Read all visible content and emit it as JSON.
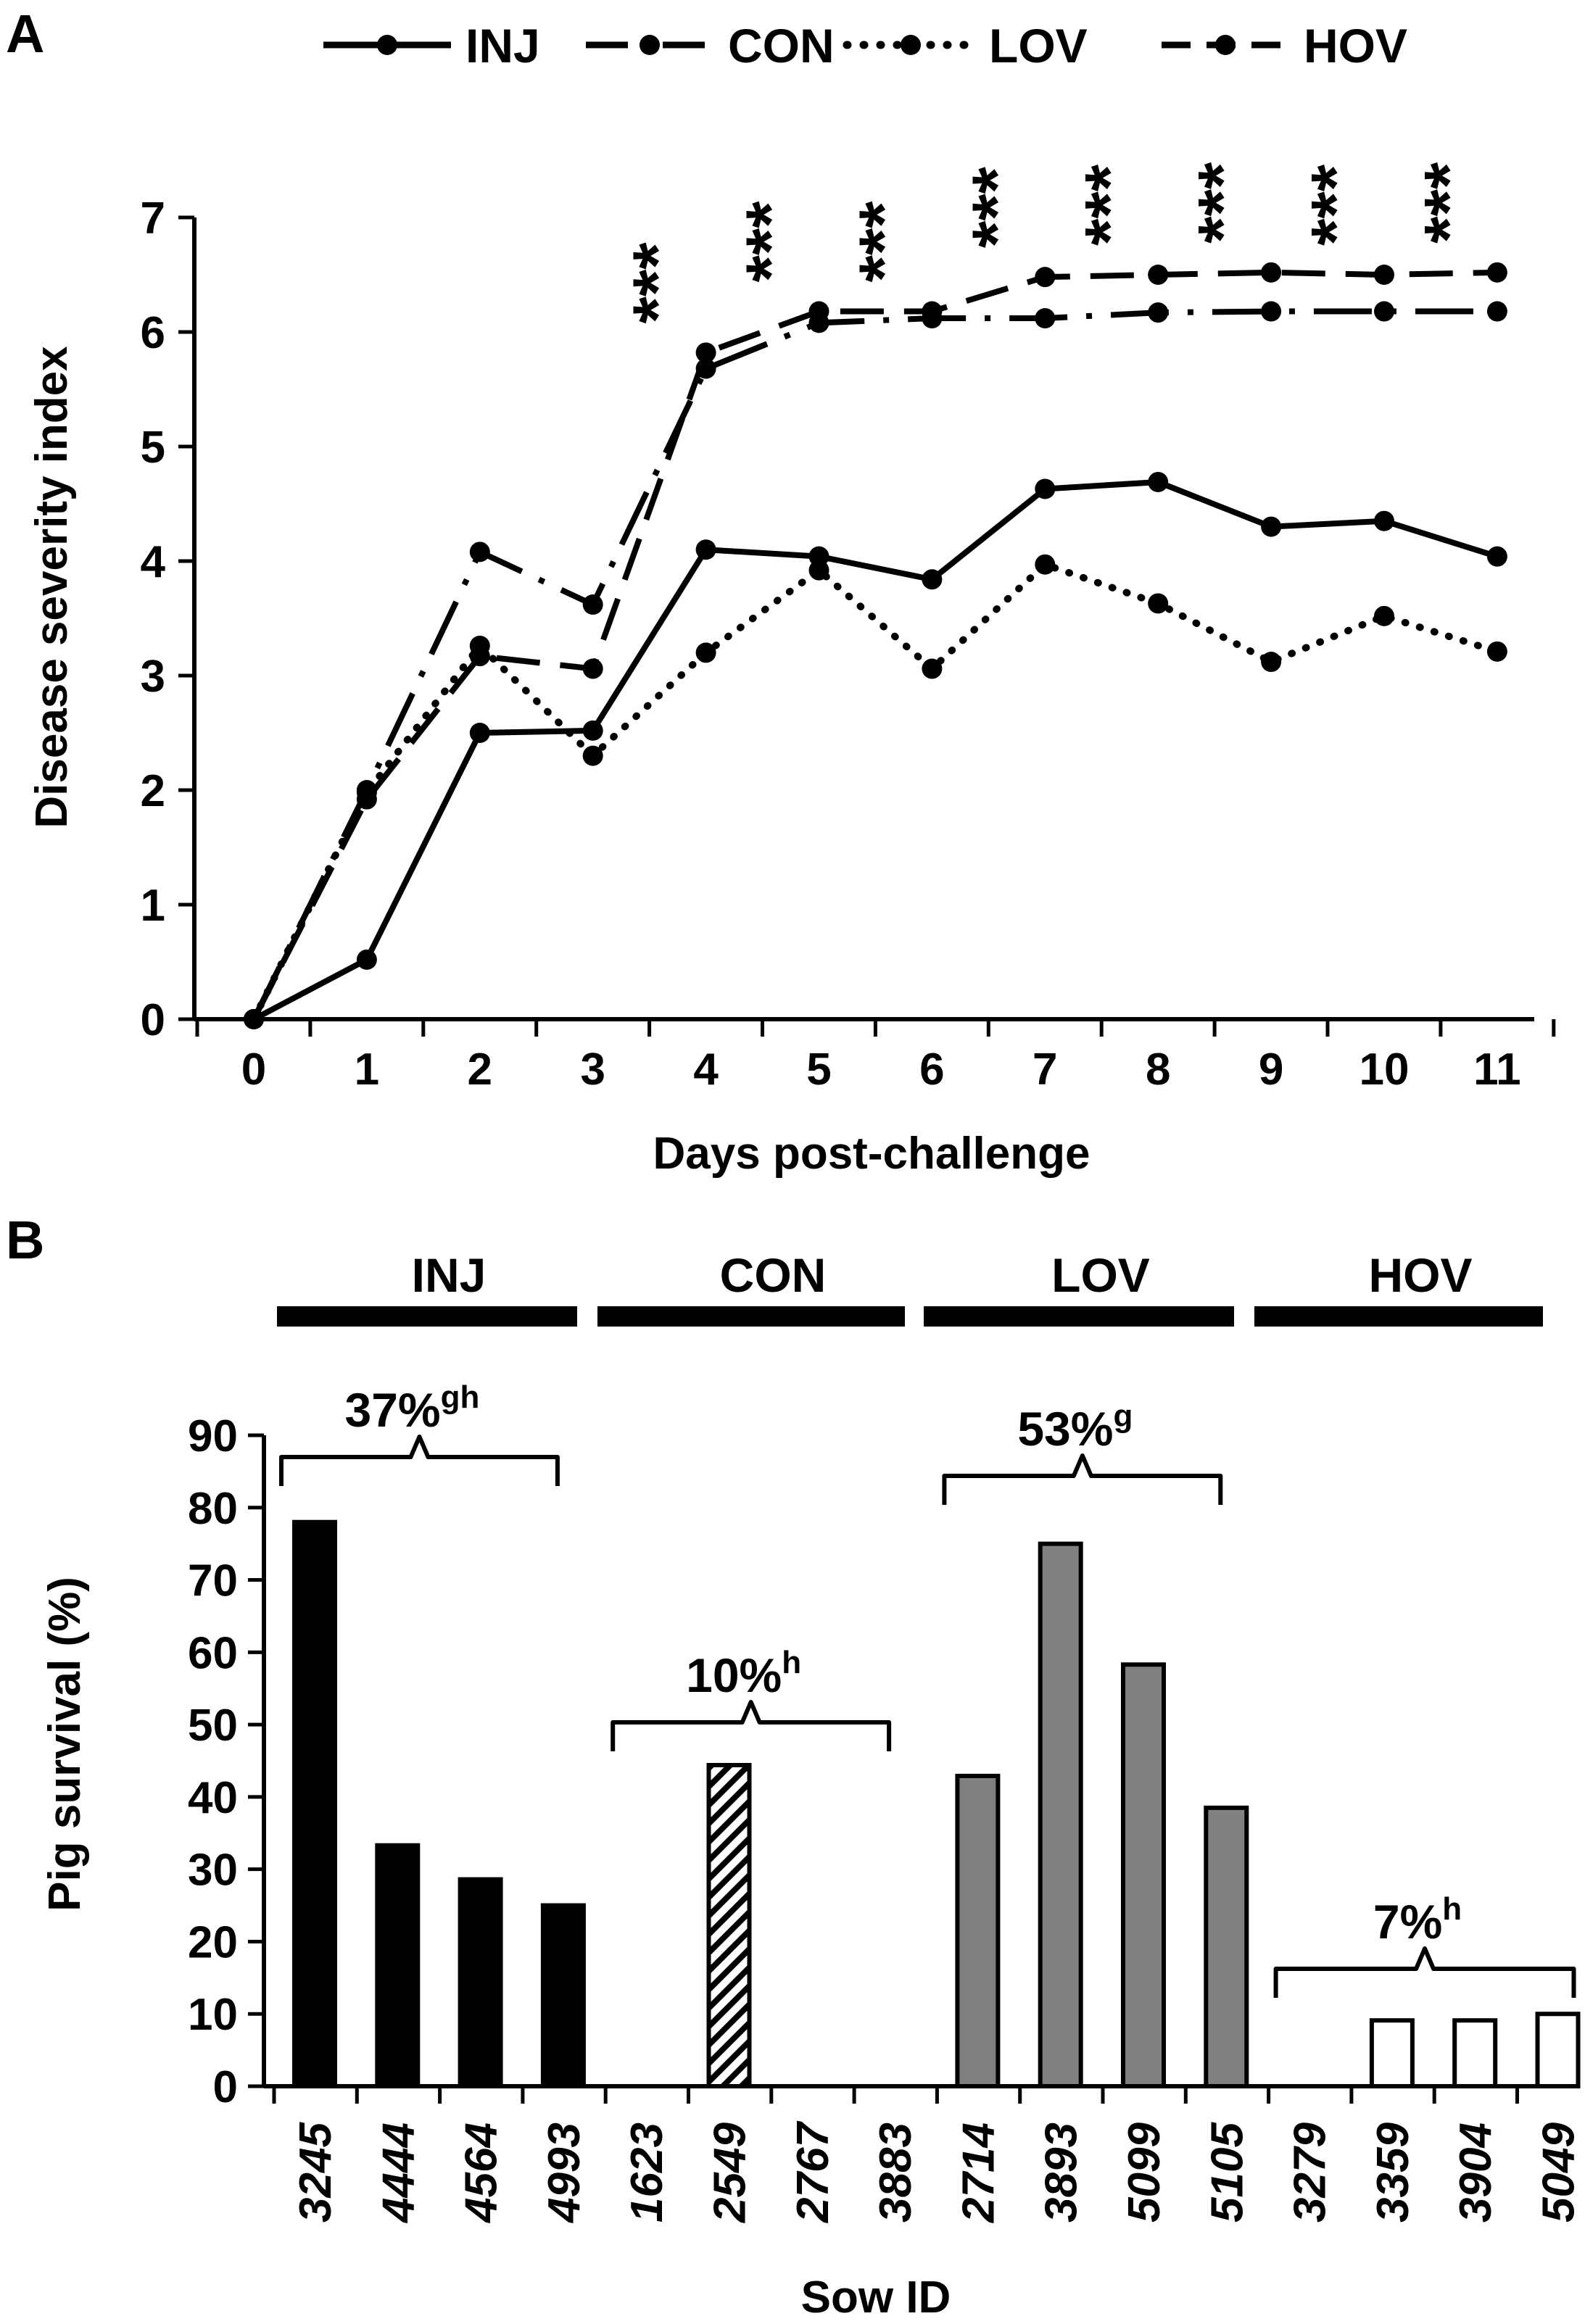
{
  "chart_data": [
    {
      "panel": "A",
      "type": "line",
      "title": "",
      "xlabel": "Days post-challenge",
      "ylabel": "Disease severity index",
      "x": [
        0,
        1,
        2,
        3,
        4,
        5,
        6,
        7,
        8,
        9,
        10,
        11
      ],
      "xlim": [
        0,
        11
      ],
      "ylim": [
        0,
        7
      ],
      "yticks": [
        0,
        1,
        2,
        3,
        4,
        5,
        6,
        7
      ],
      "legend_position": "top",
      "series": [
        {
          "name": "INJ",
          "style": "solid",
          "values": [
            0,
            0.52,
            2.5,
            2.52,
            4.1,
            4.04,
            3.84,
            4.63,
            4.69,
            4.3,
            4.35,
            4.04
          ]
        },
        {
          "name": "CON",
          "style": "dash-dot",
          "values": [
            0,
            2.0,
            4.08,
            3.62,
            5.68,
            6.08,
            6.12,
            6.12,
            6.17,
            6.18,
            6.18,
            6.18
          ]
        },
        {
          "name": "LOV",
          "style": "dotted",
          "values": [
            0,
            1.98,
            3.26,
            2.3,
            3.2,
            3.92,
            3.06,
            3.97,
            3.63,
            3.12,
            3.52,
            3.21
          ]
        },
        {
          "name": "HOV",
          "style": "dashed",
          "values": [
            0,
            1.92,
            3.17,
            3.06,
            5.82,
            6.18,
            6.18,
            6.48,
            6.5,
            6.52,
            6.5,
            6.52
          ]
        }
      ],
      "significance": {
        "marker": "***",
        "days": [
          4,
          5,
          6,
          7,
          8,
          9,
          10,
          11
        ]
      }
    },
    {
      "panel": "B",
      "type": "bar",
      "title": "",
      "xlabel": "Sow ID",
      "ylabel": "Pig survival (%)",
      "ylim": [
        0,
        90
      ],
      "yticks": [
        0,
        10,
        20,
        30,
        40,
        50,
        60,
        70,
        80,
        90
      ],
      "categories": [
        "3245",
        "4444",
        "4564",
        "4993",
        "1623",
        "2549",
        "2767",
        "3883",
        "2714",
        "3893",
        "5099",
        "5105",
        "3279",
        "3359",
        "3904",
        "5049"
      ],
      "groups": [
        {
          "name": "INJ",
          "fill": "#000000",
          "pattern": "solid",
          "summary": "37%",
          "superscript": "gh",
          "sows": [
            "3245",
            "4444",
            "4564",
            "4993"
          ],
          "values": [
            78,
            33.3,
            28.6,
            25
          ]
        },
        {
          "name": "CON",
          "fill": "#ffffff",
          "pattern": "hatched",
          "summary": "10%",
          "superscript": "h",
          "sows": [
            "1623",
            "2549",
            "2767",
            "3883"
          ],
          "values": [
            0,
            44.4,
            0,
            0
          ]
        },
        {
          "name": "LOV",
          "fill": "#808080",
          "pattern": "solid",
          "summary": "53%",
          "superscript": "g",
          "sows": [
            "2714",
            "3893",
            "5099",
            "5105"
          ],
          "values": [
            42.9,
            75,
            58.3,
            38.5
          ]
        },
        {
          "name": "HOV",
          "fill": "#ffffff",
          "pattern": "solid",
          "summary": "7%",
          "superscript": "h",
          "sows": [
            "3279",
            "3359",
            "3904",
            "5049"
          ],
          "values": [
            0,
            9.1,
            9.1,
            10
          ]
        }
      ]
    }
  ]
}
